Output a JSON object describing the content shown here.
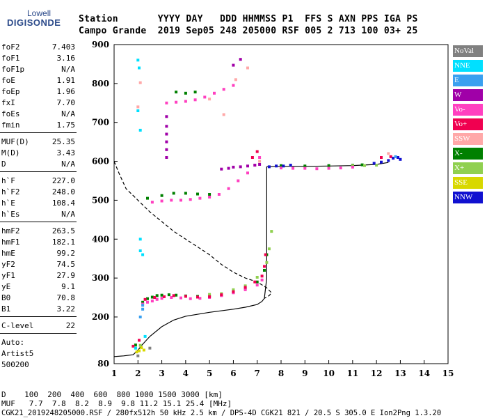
{
  "logo": {
    "top": "Lowell",
    "main": "DIGISONDE"
  },
  "header": {
    "row1": "Station       YYYY DAY   DDD HHMMSS P1  FFS S AXN PPS IGA PS",
    "row2": "Campo Grande  2019 Sep05 248 205000 RSF 005 2 713 100 03+ 25"
  },
  "params": [
    {
      "k": "foF2",
      "v": "7.403"
    },
    {
      "k": "foF1",
      "v": "3.16"
    },
    {
      "k": "foF1p",
      "v": "N/A"
    },
    {
      "k": "foE",
      "v": "1.91"
    },
    {
      "k": "foEp",
      "v": "1.96"
    },
    {
      "k": "fxI",
      "v": "7.70"
    },
    {
      "k": "foEs",
      "v": "N/A"
    },
    {
      "k": "fmin",
      "v": "1.75"
    },
    {
      "k": "MUF(D)",
      "v": "25.35"
    },
    {
      "k": "M(D)",
      "v": "3.43"
    },
    {
      "k": "D",
      "v": "N/A"
    },
    {
      "k": "h`F",
      "v": "227.0"
    },
    {
      "k": "h`F2",
      "v": "248.0"
    },
    {
      "k": "h`E",
      "v": "108.4"
    },
    {
      "k": "h`Es",
      "v": "N/A"
    },
    {
      "k": "hmF2",
      "v": "263.5"
    },
    {
      "k": "hmF1",
      "v": "182.1"
    },
    {
      "k": "hmE",
      "v": "99.2"
    },
    {
      "k": "yF2",
      "v": "74.5"
    },
    {
      "k": "yF1",
      "v": "27.9"
    },
    {
      "k": "yE",
      "v": "9.1"
    },
    {
      "k": "B0",
      "v": "70.8"
    },
    {
      "k": "B1",
      "v": "3.22"
    },
    {
      "k": "C-level",
      "v": "22"
    }
  ],
  "auto": {
    "l1": "Auto:",
    "l2": "Artist5",
    "l3": "500200"
  },
  "legend": [
    {
      "label": "NoVal",
      "color": "#808080"
    },
    {
      "label": "NNE",
      "color": "#00e0ff"
    },
    {
      "label": "E",
      "color": "#3aa0f0"
    },
    {
      "label": "W",
      "color": "#a000a8"
    },
    {
      "label": "Vo-",
      "color": "#ff40c0"
    },
    {
      "label": "Vo+",
      "color": "#f00050"
    },
    {
      "label": "SSW",
      "color": "#ffa8a8"
    },
    {
      "label": "X-",
      "color": "#008000"
    },
    {
      "label": "X+",
      "color": "#90d050"
    },
    {
      "label": "SSE",
      "color": "#d8d800"
    },
    {
      "label": "NNW",
      "color": "#1010d0"
    }
  ],
  "bottom": {
    "d_row": "D    100  200  400  600  800 1000 1500 3000 [km]",
    "muf_row": "MUF   7.7  7.8  8.2  8.9  9.8 11.2 15.1 25.4 [MHz]",
    "footer": "CGK21_2019248205000.RSF / 280fx512h 50 kHz 2.5 km / DPS-4D CGK21 821 / 20.5 S 305.0 E Ion2Png 1.3.20"
  },
  "chart_data": {
    "type": "scatter",
    "x_ticks": [
      "1",
      "2",
      "3",
      "4",
      "5",
      "6",
      "7",
      "8",
      "9",
      "10",
      "11",
      "12",
      "13",
      "14",
      "15"
    ],
    "y_ticks": [
      "80",
      "200",
      "300",
      "400",
      "500",
      "600",
      "700",
      "800",
      "900"
    ],
    "xlim": [
      1,
      15
    ],
    "ylim": [
      80,
      900
    ],
    "series": [
      {
        "name": "X-",
        "color": "#008000",
        "points": [
          [
            1.9,
            128
          ],
          [
            2.2,
            238
          ],
          [
            2.4,
            247
          ],
          [
            2.6,
            251
          ],
          [
            2.8,
            255
          ],
          [
            3.0,
            256
          ],
          [
            3.3,
            257
          ],
          [
            3.6,
            256
          ],
          [
            4.0,
            254
          ],
          [
            4.5,
            253
          ],
          [
            5.0,
            253
          ],
          [
            5.5,
            256
          ],
          [
            6.0,
            263
          ],
          [
            6.5,
            273
          ],
          [
            7.0,
            290
          ],
          [
            7.3,
            320
          ],
          [
            7.4,
            360
          ],
          [
            2.4,
            505
          ],
          [
            3.0,
            512
          ],
          [
            3.5,
            518
          ],
          [
            4.0,
            518
          ],
          [
            4.5,
            516
          ],
          [
            5.0,
            515
          ],
          [
            3.6,
            778
          ],
          [
            4.0,
            775
          ],
          [
            4.4,
            778
          ],
          [
            8.0,
            589
          ],
          [
            9.0,
            588
          ],
          [
            10.0,
            589
          ],
          [
            11.0,
            590
          ],
          [
            11.4,
            591
          ]
        ]
      },
      {
        "name": "X+",
        "color": "#90d050",
        "points": [
          [
            1.9,
            120
          ],
          [
            2.1,
            127
          ],
          [
            5.0,
            258
          ],
          [
            5.5,
            260
          ],
          [
            6.0,
            270
          ],
          [
            6.5,
            280
          ],
          [
            7.0,
            302
          ],
          [
            7.4,
            340
          ],
          [
            7.5,
            375
          ],
          [
            7.6,
            420
          ],
          [
            11.0,
            589
          ],
          [
            11.5,
            589
          ],
          [
            12.0,
            590
          ]
        ]
      },
      {
        "name": "Vo-",
        "color": "#ff40c0",
        "points": [
          [
            2.2,
            233
          ],
          [
            2.4,
            238
          ],
          [
            2.6,
            241
          ],
          [
            2.8,
            245
          ],
          [
            3.0,
            248
          ],
          [
            3.4,
            250
          ],
          [
            3.8,
            249
          ],
          [
            4.2,
            247
          ],
          [
            4.6,
            248
          ],
          [
            5.0,
            250
          ],
          [
            5.5,
            255
          ],
          [
            6.0,
            262
          ],
          [
            6.5,
            270
          ],
          [
            7.0,
            282
          ],
          [
            7.2,
            295
          ],
          [
            2.6,
            495
          ],
          [
            3.0,
            498
          ],
          [
            3.4,
            500
          ],
          [
            3.8,
            500
          ],
          [
            4.2,
            502
          ],
          [
            4.6,
            505
          ],
          [
            5.0,
            508
          ],
          [
            5.4,
            515
          ],
          [
            5.8,
            530
          ],
          [
            6.2,
            550
          ],
          [
            6.6,
            570
          ],
          [
            6.9,
            590
          ],
          [
            7.1,
            610
          ],
          [
            3.2,
            750
          ],
          [
            3.6,
            752
          ],
          [
            4.0,
            754
          ],
          [
            4.4,
            758
          ],
          [
            4.8,
            765
          ],
          [
            5.2,
            775
          ],
          [
            5.6,
            785
          ],
          [
            6.0,
            795
          ],
          [
            8.0,
            583
          ],
          [
            8.5,
            582
          ],
          [
            9.0,
            582
          ],
          [
            9.5,
            581
          ],
          [
            10.0,
            582
          ],
          [
            10.5,
            583
          ],
          [
            11.0,
            585
          ]
        ]
      },
      {
        "name": "Vo+",
        "color": "#f00050",
        "points": [
          [
            1.8,
            125
          ],
          [
            2.05,
            140
          ],
          [
            2.3,
            245
          ],
          [
            2.7,
            250
          ],
          [
            3.1,
            252
          ],
          [
            3.5,
            255
          ],
          [
            4.0,
            253
          ],
          [
            4.5,
            251
          ],
          [
            5.0,
            252
          ],
          [
            5.5,
            257
          ],
          [
            6.0,
            265
          ],
          [
            6.5,
            276
          ],
          [
            6.9,
            290
          ],
          [
            7.2,
            305
          ],
          [
            7.3,
            330
          ],
          [
            7.35,
            360
          ],
          [
            6.8,
            610
          ],
          [
            7.0,
            625
          ],
          [
            12.2,
            610
          ],
          [
            12.6,
            612
          ]
        ]
      },
      {
        "name": "SSW",
        "color": "#ffa8a8",
        "points": [
          [
            2.0,
            740
          ],
          [
            2.1,
            802
          ],
          [
            5.0,
            760
          ],
          [
            5.6,
            720
          ],
          [
            6.1,
            810
          ],
          [
            6.6,
            840
          ],
          [
            7.1,
            600
          ],
          [
            12.5,
            620
          ]
        ]
      },
      {
        "name": "NNW",
        "color": "#1010d0",
        "points": [
          [
            7.5,
            586
          ],
          [
            7.8,
            588
          ],
          [
            8.1,
            588
          ],
          [
            8.4,
            590
          ],
          [
            11.9,
            595
          ],
          [
            12.2,
            598
          ],
          [
            12.5,
            602
          ],
          [
            12.7,
            608
          ],
          [
            12.9,
            610
          ],
          [
            13.0,
            605
          ]
        ]
      },
      {
        "name": "W",
        "color": "#a000a8",
        "points": [
          [
            3.2,
            610
          ],
          [
            3.2,
            630
          ],
          [
            3.2,
            650
          ],
          [
            3.2,
            670
          ],
          [
            3.2,
            690
          ],
          [
            3.2,
            715
          ],
          [
            6.0,
            847
          ],
          [
            6.3,
            862
          ],
          [
            6.0,
            585
          ],
          [
            6.3,
            586
          ],
          [
            6.6,
            588
          ],
          [
            6.9,
            590
          ],
          [
            7.1,
            592
          ],
          [
            5.5,
            580
          ],
          [
            5.8,
            582
          ]
        ]
      },
      {
        "name": "NNE",
        "color": "#00e0ff",
        "points": [
          [
            2.0,
            860
          ],
          [
            2.05,
            840
          ],
          [
            2.0,
            730
          ],
          [
            2.1,
            680
          ],
          [
            2.1,
            400
          ],
          [
            2.1,
            370
          ],
          [
            2.2,
            360
          ],
          [
            2.3,
            150
          ],
          [
            1.9,
            120
          ]
        ]
      },
      {
        "name": "E",
        "color": "#3aa0f0",
        "points": [
          [
            2.1,
            200
          ],
          [
            2.2,
            220
          ],
          [
            2.2,
            230
          ],
          [
            12.8,
            612
          ]
        ]
      },
      {
        "name": "SSE",
        "color": "#d8d800",
        "points": [
          [
            1.95,
            110
          ],
          [
            2.05,
            113
          ],
          [
            2.15,
            121
          ],
          [
            2.25,
            115
          ]
        ]
      },
      {
        "name": "NoVal",
        "color": "#808080",
        "points": [
          [
            2.0,
            100
          ],
          [
            2.5,
            120
          ]
        ]
      }
    ],
    "profile": [
      [
        1.0,
        98
      ],
      [
        1.4,
        100
      ],
      [
        1.8,
        103
      ],
      [
        2.0,
        115
      ],
      [
        2.2,
        130
      ],
      [
        2.5,
        150
      ],
      [
        3.0,
        175
      ],
      [
        3.5,
        192
      ],
      [
        4.0,
        202
      ],
      [
        5.0,
        212
      ],
      [
        6.0,
        220
      ],
      [
        6.5,
        225
      ],
      [
        7.0,
        232
      ],
      [
        7.2,
        240
      ],
      [
        7.3,
        248
      ],
      [
        7.4,
        300
      ],
      [
        7.4,
        420
      ],
      [
        7.4,
        520
      ],
      [
        7.4,
        586
      ],
      [
        8.0,
        587
      ],
      [
        9.0,
        587
      ],
      [
        10.0,
        588
      ],
      [
        11.0,
        589
      ],
      [
        12.0,
        592
      ],
      [
        12.5,
        597
      ]
    ],
    "dashed_curve": [
      [
        1.0,
        600
      ],
      [
        1.2,
        570
      ],
      [
        1.5,
        530
      ],
      [
        2.0,
        500
      ],
      [
        2.5,
        470
      ],
      [
        3.0,
        445
      ],
      [
        3.5,
        420
      ],
      [
        4.0,
        400
      ],
      [
        4.5,
        380
      ],
      [
        5.0,
        360
      ],
      [
        5.5,
        335
      ],
      [
        6.0,
        315
      ],
      [
        6.5,
        300
      ],
      [
        7.0,
        290
      ],
      [
        7.4,
        275
      ],
      [
        7.6,
        262
      ],
      [
        7.5,
        255
      ],
      [
        7.3,
        248
      ]
    ]
  }
}
